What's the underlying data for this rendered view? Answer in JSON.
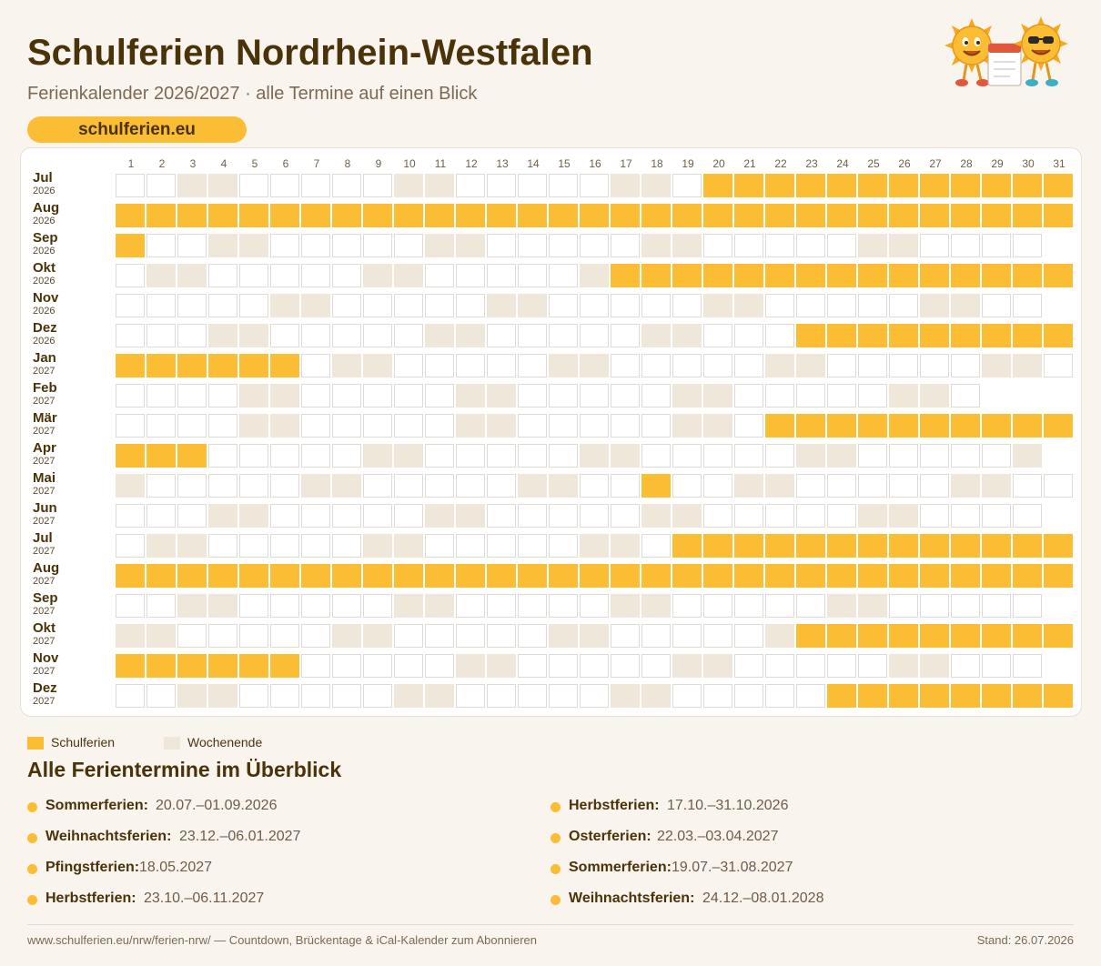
{
  "header": {
    "title": "Schulferien Nordrhein-Westfalen",
    "subtitle": "Ferienkalender 2026/2027 · alle Termine auf einen Blick",
    "badge": "schulferien.eu"
  },
  "colors": {
    "holiday": "#fbbd33",
    "weekend": "#efe7da",
    "workday": "#ffffff"
  },
  "calendar": {
    "day_headers": [
      "1",
      "2",
      "3",
      "4",
      "5",
      "6",
      "7",
      "8",
      "9",
      "10",
      "11",
      "12",
      "13",
      "14",
      "15",
      "16",
      "17",
      "18",
      "19",
      "20",
      "21",
      "22",
      "23",
      "24",
      "25",
      "26",
      "27",
      "28",
      "29",
      "30",
      "31"
    ],
    "months": [
      {
        "name": "Jul",
        "year": "2026",
        "days": 31,
        "first_weekday": 3,
        "holiday_days": [
          20,
          21,
          22,
          23,
          24,
          25,
          26,
          27,
          28,
          29,
          30,
          31
        ]
      },
      {
        "name": "Aug",
        "year": "2026",
        "days": 31,
        "first_weekday": 6,
        "holiday_days": [
          1,
          2,
          3,
          4,
          5,
          6,
          7,
          8,
          9,
          10,
          11,
          12,
          13,
          14,
          15,
          16,
          17,
          18,
          19,
          20,
          21,
          22,
          23,
          24,
          25,
          26,
          27,
          28,
          29,
          30,
          31
        ]
      },
      {
        "name": "Sep",
        "year": "2026",
        "days": 30,
        "first_weekday": 2,
        "holiday_days": [
          1
        ]
      },
      {
        "name": "Okt",
        "year": "2026",
        "days": 31,
        "first_weekday": 4,
        "holiday_days": [
          17,
          18,
          19,
          20,
          21,
          22,
          23,
          24,
          25,
          26,
          27,
          28,
          29,
          30,
          31
        ]
      },
      {
        "name": "Nov",
        "year": "2026",
        "days": 30,
        "first_weekday": 0,
        "holiday_days": []
      },
      {
        "name": "Dez",
        "year": "2026",
        "days": 31,
        "first_weekday": 2,
        "holiday_days": [
          23,
          24,
          25,
          26,
          27,
          28,
          29,
          30,
          31
        ]
      },
      {
        "name": "Jan",
        "year": "2027",
        "days": 31,
        "first_weekday": 5,
        "holiday_days": [
          1,
          2,
          3,
          4,
          5,
          6
        ]
      },
      {
        "name": "Feb",
        "year": "2027",
        "days": 28,
        "first_weekday": 1,
        "holiday_days": []
      },
      {
        "name": "Mär",
        "year": "2027",
        "days": 31,
        "first_weekday": 1,
        "holiday_days": [
          22,
          23,
          24,
          25,
          26,
          27,
          28,
          29,
          30,
          31
        ]
      },
      {
        "name": "Apr",
        "year": "2027",
        "days": 30,
        "first_weekday": 4,
        "holiday_days": [
          1,
          2,
          3
        ]
      },
      {
        "name": "Mai",
        "year": "2027",
        "days": 31,
        "first_weekday": 6,
        "holiday_days": [
          18
        ]
      },
      {
        "name": "Jun",
        "year": "2027",
        "days": 30,
        "first_weekday": 2,
        "holiday_days": []
      },
      {
        "name": "Jul",
        "year": "2027",
        "days": 31,
        "first_weekday": 4,
        "holiday_days": [
          19,
          20,
          21,
          22,
          23,
          24,
          25,
          26,
          27,
          28,
          29,
          30,
          31
        ]
      },
      {
        "name": "Aug",
        "year": "2027",
        "days": 31,
        "first_weekday": 0,
        "holiday_days": [
          1,
          2,
          3,
          4,
          5,
          6,
          7,
          8,
          9,
          10,
          11,
          12,
          13,
          14,
          15,
          16,
          17,
          18,
          19,
          20,
          21,
          22,
          23,
          24,
          25,
          26,
          27,
          28,
          29,
          30,
          31
        ]
      },
      {
        "name": "Sep",
        "year": "2027",
        "days": 30,
        "first_weekday": 3,
        "holiday_days": []
      },
      {
        "name": "Okt",
        "year": "2027",
        "days": 31,
        "first_weekday": 5,
        "holiday_days": [
          23,
          24,
          25,
          26,
          27,
          28,
          29,
          30,
          31
        ]
      },
      {
        "name": "Nov",
        "year": "2027",
        "days": 30,
        "first_weekday": 1,
        "holiday_days": [
          1,
          2,
          3,
          4,
          5,
          6
        ]
      },
      {
        "name": "Dez",
        "year": "2027",
        "days": 31,
        "first_weekday": 3,
        "holiday_days": [
          24,
          25,
          26,
          27,
          28,
          29,
          30,
          31
        ]
      }
    ]
  },
  "legend": {
    "holiday": "Schulferien",
    "weekend": "Wochenende"
  },
  "overview": {
    "title": "Alle Ferientermine im Überblick",
    "left": [
      {
        "name": "Sommerferien:",
        "dates": "20.07.–01.09.2026"
      },
      {
        "name": "Weihnachtsferien:",
        "dates": "23.12.–06.01.2027"
      },
      {
        "name": "Pfingstferien:",
        "dates": "18.05.2027"
      },
      {
        "name": "Herbstferien:",
        "dates": "23.10.–06.11.2027"
      }
    ],
    "right": [
      {
        "name": "Herbstferien:",
        "dates": "17.10.–31.10.2026"
      },
      {
        "name": "Osterferien:",
        "dates": "22.03.–03.04.2027"
      },
      {
        "name": "Sommerferien:",
        "dates": "19.07.–31.08.2027"
      },
      {
        "name": "Weihnachtsferien:",
        "dates": "24.12.–08.01.2028"
      }
    ]
  },
  "footer": {
    "left": "www.schulferien.eu/nrw/ferien-nrw/ — Countdown, Brückentage & iCal-Kalender zum Abonnieren",
    "right": "Stand: 26.07.2026"
  },
  "mascot_icon": "sun-mascots-with-calendar-icon"
}
